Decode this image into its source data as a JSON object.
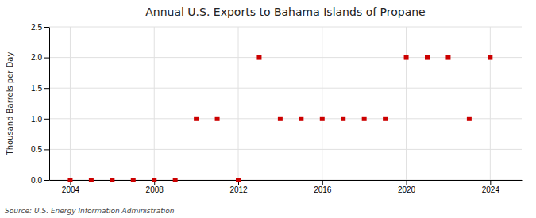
{
  "chart_data": {
    "type": "scatter",
    "title": "Annual U.S. Exports to Bahama Islands of Propane",
    "y_label": "Thousand Barrels per Day",
    "annotations": [
      "Source: U.S. Energy Information Administration"
    ],
    "x": [
      2004,
      2005,
      2006,
      2007,
      2008,
      2009,
      2010,
      2011,
      2012,
      2013,
      2014,
      2015,
      2016,
      2017,
      2018,
      2019,
      2020,
      2021,
      2022,
      2023,
      2024
    ],
    "values": [
      0.0,
      0.0,
      0.0,
      0.0,
      0.0,
      0.0,
      1.0,
      1.0,
      0.0,
      2.0,
      1.0,
      1.0,
      1.0,
      1.0,
      1.0,
      1.0,
      2.0,
      2.0,
      2.0,
      1.0,
      2.0
    ],
    "color": "#cc0000",
    "marker": "square",
    "xlim": [
      2003.0,
      2025.5
    ],
    "ylim": [
      0.0,
      2.5
    ],
    "xticks": [
      2004,
      2008,
      2012,
      2016,
      2020,
      2024
    ],
    "yticks": [
      {
        "value": 0.0,
        "label": "0.0"
      },
      0.5,
      {
        "value": 1.0,
        "label": "1.0"
      },
      1.5,
      {
        "value": 2.0,
        "label": "2.0"
      },
      2.5
    ],
    "grid": true
  }
}
